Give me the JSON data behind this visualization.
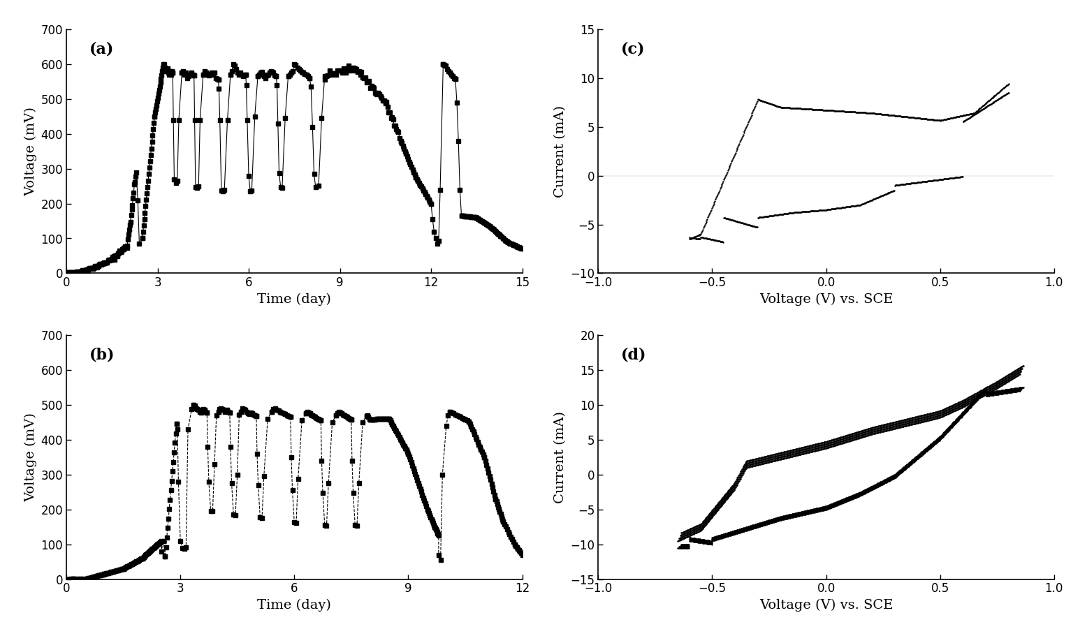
{
  "fig_width": 39.54,
  "fig_height": 23.14,
  "background_color": "#ffffff",
  "panels": [
    "a",
    "b",
    "c",
    "d"
  ],
  "panel_a": {
    "label": "(a)",
    "xlabel": "Time (day)",
    "ylabel": "Voltage (mV)",
    "xlim": [
      0,
      15
    ],
    "ylim": [
      0,
      700
    ],
    "xticks": [
      0,
      3,
      6,
      9,
      12,
      15
    ],
    "yticks": [
      0,
      100,
      200,
      300,
      400,
      500,
      600,
      700
    ]
  },
  "panel_b": {
    "label": "(b)",
    "xlabel": "Time (day)",
    "ylabel": "Voltage (mV)",
    "xlim": [
      0,
      12
    ],
    "ylim": [
      0,
      700
    ],
    "xticks": [
      0,
      3,
      6,
      9,
      12
    ],
    "yticks": [
      0,
      100,
      200,
      300,
      400,
      500,
      600,
      700
    ]
  },
  "panel_c": {
    "label": "(c)",
    "xlabel": "Voltage (V) vs. SCE",
    "ylabel": "Current (mA)",
    "xlim": [
      -1.0,
      1.0
    ],
    "ylim": [
      -10,
      15
    ],
    "xticks": [
      -1.0,
      -0.5,
      0.0,
      0.5,
      1.0
    ],
    "yticks": [
      -10,
      -5,
      0,
      5,
      10,
      15
    ]
  },
  "panel_d": {
    "label": "(d)",
    "xlabel": "Voltage (V) vs. SCE",
    "ylabel": "Current (mA)",
    "xlim": [
      -1.0,
      1.0
    ],
    "ylim": [
      -15,
      20
    ],
    "xticks": [
      -1.0,
      -0.5,
      0.0,
      0.5,
      1.0
    ],
    "yticks": [
      -15,
      -10,
      -5,
      0,
      5,
      10,
      15,
      20
    ]
  }
}
